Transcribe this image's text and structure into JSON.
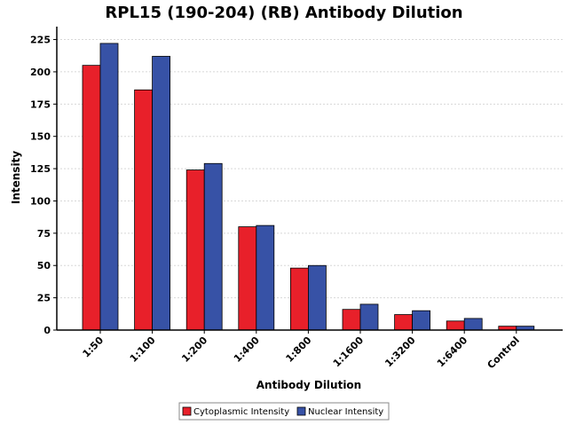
{
  "chart_data": {
    "type": "bar",
    "title": "RPL15 (190-204) (RB) Antibody Dilution",
    "xlabel": "Antibody Dilution",
    "ylabel": "Intensity",
    "categories": [
      "1:50",
      "1:100",
      "1:200",
      "1:400",
      "1:800",
      "1:1600",
      "1:3200",
      "1:6400",
      "Control"
    ],
    "ylim": [
      0,
      235
    ],
    "yticks": [
      0,
      25,
      50,
      75,
      100,
      125,
      150,
      175,
      200,
      225
    ],
    "grid": true,
    "legend_position": "bottom-center",
    "series": [
      {
        "name": "Cytoplasmic Intensity",
        "color": "#e8202a",
        "values": [
          205,
          186,
          124,
          80,
          48,
          16,
          12,
          7,
          3
        ]
      },
      {
        "name": "Nuclear Intensity",
        "color": "#3752a6",
        "values": [
          222,
          212,
          129,
          81,
          50,
          20,
          15,
          9,
          3
        ]
      }
    ]
  }
}
